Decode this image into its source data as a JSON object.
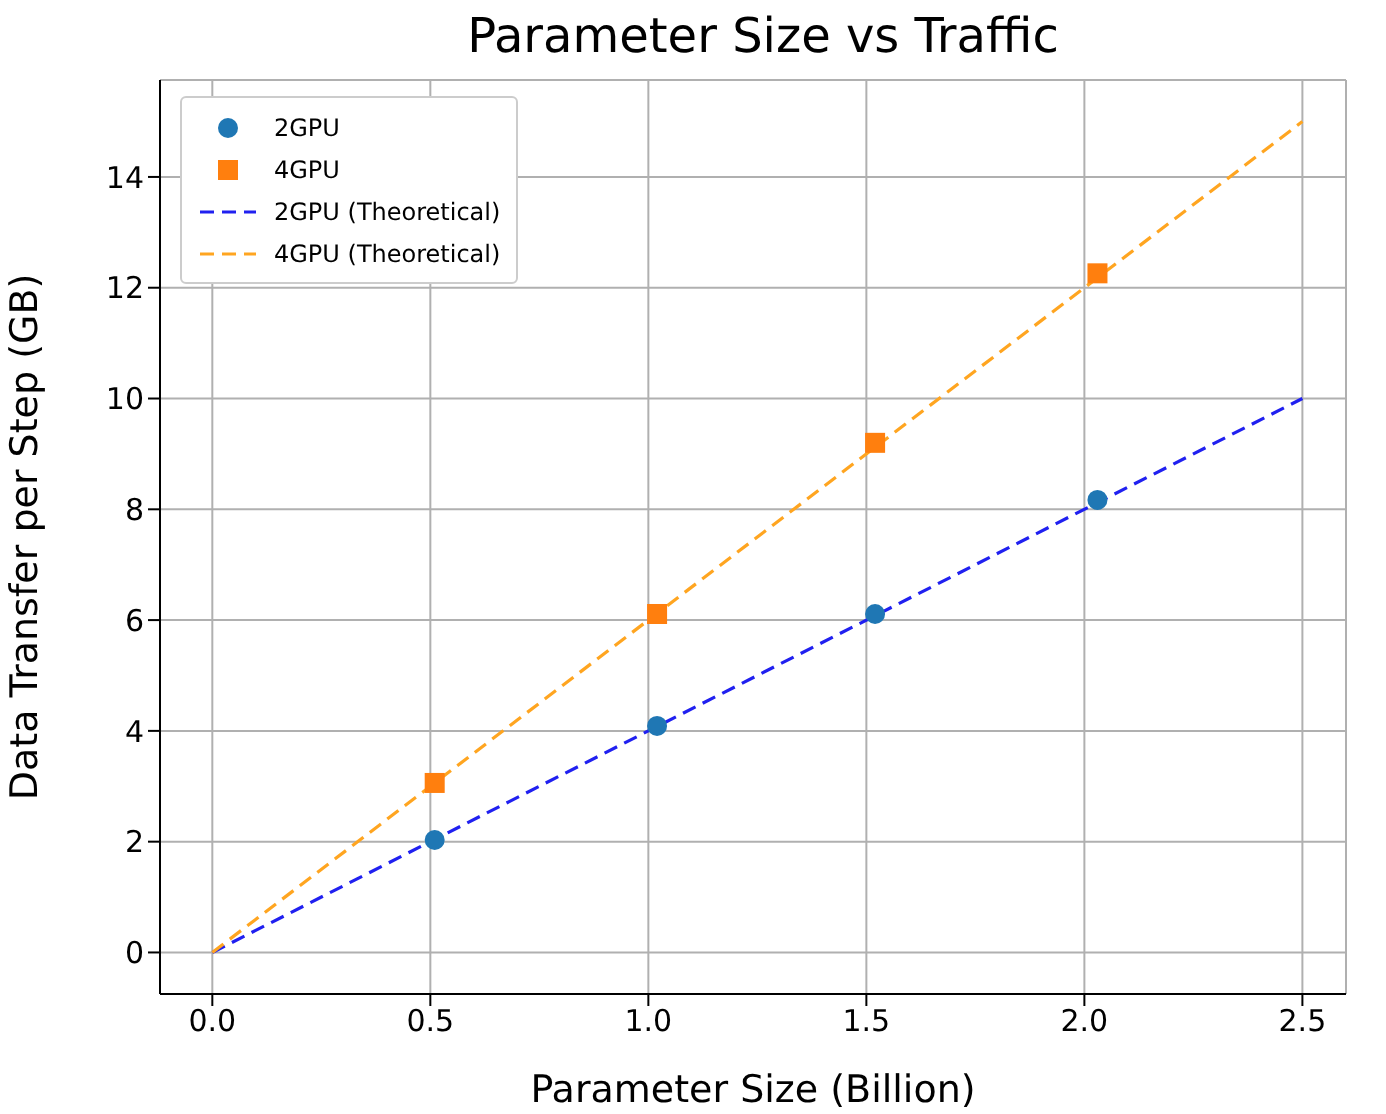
{
  "chart_data": {
    "type": "scatter",
    "title": "Parameter Size vs Traffic",
    "xlabel": "Parameter Size (Billion)",
    "ylabel": "Data Transfer per Step (GB)",
    "series": [
      {
        "name": "2GPU",
        "marker": "circle",
        "color": "#1f77b4",
        "x": [
          0.51,
          1.02,
          1.52,
          2.03
        ],
        "values": [
          2.03,
          4.09,
          6.11,
          8.17
        ]
      },
      {
        "name": "4GPU",
        "marker": "square",
        "color": "#ff7f0e",
        "x": [
          0.51,
          1.02,
          1.52,
          2.03
        ],
        "values": [
          3.06,
          6.11,
          9.2,
          12.26
        ]
      },
      {
        "name": "2GPU (Theoretical)",
        "type": "line",
        "line_style": "dashed",
        "color": "#2020f0",
        "x": [
          0,
          2.5
        ],
        "values": [
          0,
          10
        ]
      },
      {
        "name": "4GPU (Theoretical)",
        "type": "line",
        "line_style": "dashed",
        "color": "#ffa520",
        "x": [
          0,
          2.5
        ],
        "values": [
          0,
          15
        ]
      }
    ],
    "xlim": [
      -0.12,
      2.6
    ],
    "xticks": [
      {
        "value": 0,
        "label": "0.0"
      },
      {
        "value": 0.5,
        "label": "0.5"
      },
      {
        "value": 1,
        "label": "1.0"
      },
      {
        "value": 1.5,
        "label": "1.5"
      },
      {
        "value": 2,
        "label": "2.0"
      },
      {
        "value": 2.5,
        "label": "2.5"
      }
    ],
    "ylim": [
      -0.75,
      15.75
    ],
    "yticks": [
      0,
      2,
      4,
      6,
      8,
      10,
      12,
      14
    ],
    "grid": true,
    "legend": "top left"
  }
}
